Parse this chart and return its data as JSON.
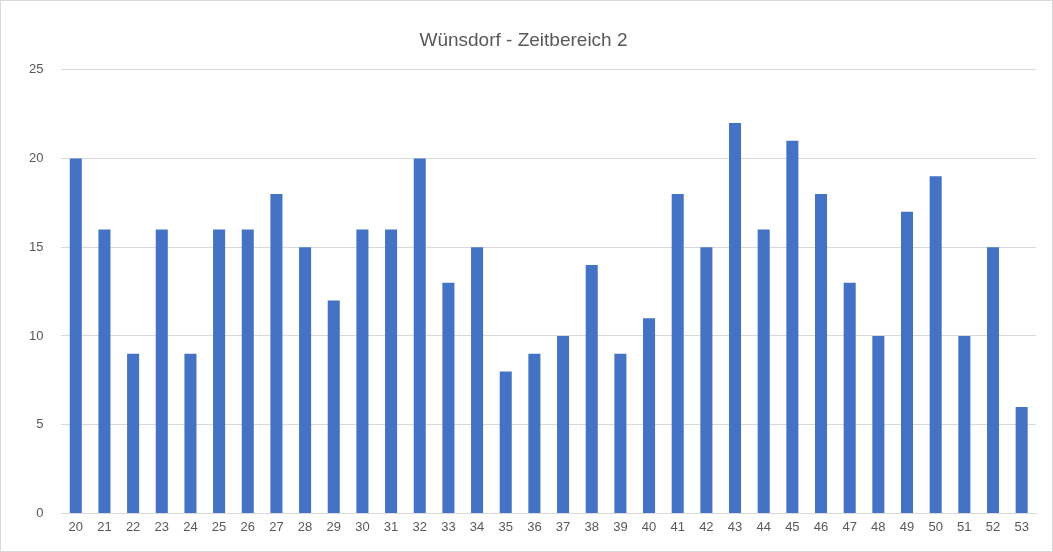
{
  "chart_data": {
    "type": "bar",
    "title": "Wünsdorf - Zeitbereich 2",
    "categories": [
      "20",
      "21",
      "22",
      "23",
      "24",
      "25",
      "26",
      "27",
      "28",
      "29",
      "30",
      "31",
      "32",
      "33",
      "34",
      "35",
      "36",
      "37",
      "38",
      "39",
      "40",
      "41",
      "42",
      "43",
      "44",
      "45",
      "46",
      "47",
      "48",
      "49",
      "50",
      "51",
      "52",
      "53"
    ],
    "values": [
      20,
      16,
      9,
      16,
      9,
      16,
      16,
      18,
      15,
      12,
      16,
      16,
      20,
      13,
      15,
      8,
      9,
      10,
      14,
      9,
      11,
      18,
      15,
      22,
      16,
      21,
      18,
      13,
      10,
      17,
      19,
      10,
      15,
      6
    ],
    "color": "#4472c4",
    "ylim": [
      0,
      25
    ],
    "yticks": [
      0,
      5,
      10,
      15,
      20,
      25
    ],
    "grid": "y",
    "legend": false
  }
}
